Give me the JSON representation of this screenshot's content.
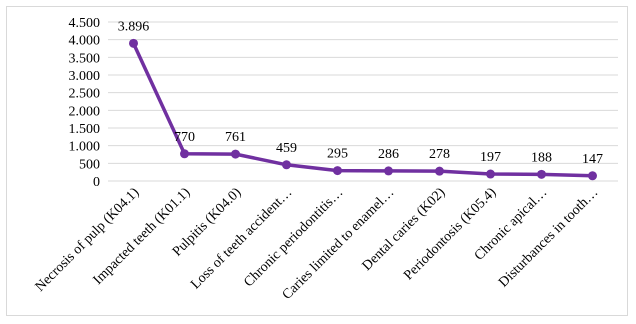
{
  "chart_data": {
    "type": "line",
    "categories": [
      "Necrosis of pulp (K04.1)",
      "Impacted teeth (K01.1)",
      "Pulpitis (K04.0)",
      "Loss of teeth accident…",
      "Chronic periodontitis…",
      "Caries limited to enamel…",
      "Dental caries (K02)",
      "Periodontosis (K05.4)",
      "Chronic apical…",
      "Disturbances in tooth…"
    ],
    "values": [
      3896,
      770,
      761,
      459,
      295,
      286,
      278,
      197,
      188,
      147
    ],
    "data_labels": [
      "3.896",
      "770",
      "761",
      "459",
      "295",
      "286",
      "278",
      "197",
      "188",
      "147"
    ],
    "y_ticks": [
      0,
      500,
      1000,
      1500,
      2000,
      2500,
      3000,
      3500,
      4000,
      4500
    ],
    "y_tick_labels": [
      "0",
      "500",
      "1.000",
      "1.500",
      "2.000",
      "2.500",
      "3.000",
      "3.500",
      "4.000",
      "4.500"
    ],
    "ylim": [
      0,
      4500
    ],
    "grid": true,
    "series_color": "#7030a0",
    "title": "",
    "xlabel": "",
    "ylabel": ""
  }
}
